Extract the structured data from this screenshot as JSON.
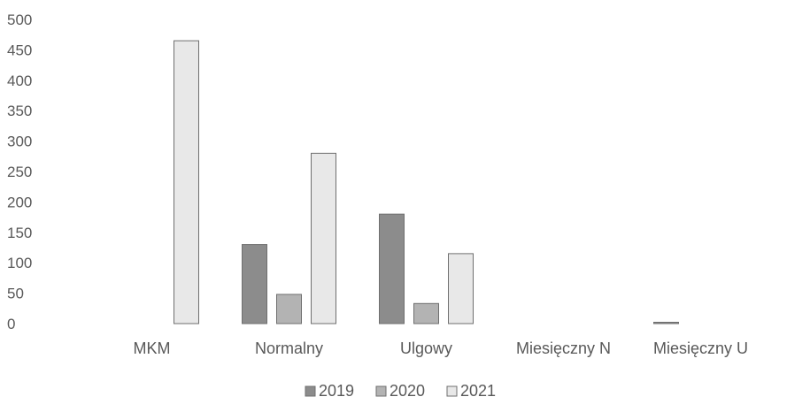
{
  "chart_data": {
    "type": "bar",
    "title": "",
    "xlabel": "",
    "ylabel": "",
    "ylim": [
      0,
      500
    ],
    "yticks": [
      "0",
      "50",
      "100",
      "150",
      "200",
      "250",
      "300",
      "350",
      "400",
      "450",
      "500"
    ],
    "grid": false,
    "legend_position": "bottom",
    "categories": [
      "MKM",
      "Normalny",
      "Ulgowy",
      "Miesięczny N",
      "Miesięczny U"
    ],
    "series": [
      {
        "name": "2019",
        "color": "#8c8c8c",
        "values": [
          0,
          130,
          180,
          0,
          2
        ]
      },
      {
        "name": "2020",
        "color": "#b3b3b3",
        "values": [
          0,
          48,
          33,
          0,
          0
        ]
      },
      {
        "name": "2021",
        "color": "#e8e8e8",
        "values": [
          465,
          280,
          115,
          0,
          0
        ]
      }
    ]
  }
}
